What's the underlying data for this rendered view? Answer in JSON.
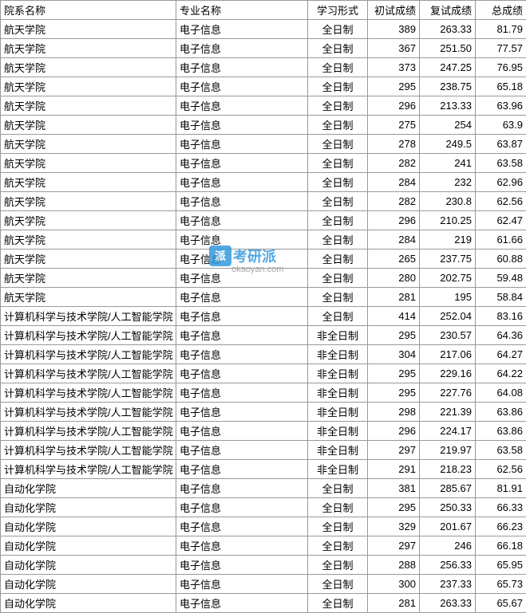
{
  "headers": {
    "dept": "院系名称",
    "major": "专业名称",
    "mode": "学习形式",
    "score1": "初试成绩",
    "score2": "复试成绩",
    "total": "总成绩"
  },
  "watermark": {
    "icon": "派",
    "text": "考研派",
    "url": "okaoyan.com"
  },
  "rows": [
    {
      "dept": "航天学院",
      "major": "电子信息",
      "mode": "全日制",
      "score1": "389",
      "score2": "263.33",
      "total": "81.79"
    },
    {
      "dept": "航天学院",
      "major": "电子信息",
      "mode": "全日制",
      "score1": "367",
      "score2": "251.50",
      "total": "77.57"
    },
    {
      "dept": "航天学院",
      "major": "电子信息",
      "mode": "全日制",
      "score1": "373",
      "score2": "247.25",
      "total": "76.95"
    },
    {
      "dept": "航天学院",
      "major": "电子信息",
      "mode": "全日制",
      "score1": "295",
      "score2": "238.75",
      "total": "65.18"
    },
    {
      "dept": "航天学院",
      "major": "电子信息",
      "mode": "全日制",
      "score1": "296",
      "score2": "213.33",
      "total": "63.96"
    },
    {
      "dept": "航天学院",
      "major": "电子信息",
      "mode": "全日制",
      "score1": "275",
      "score2": "254",
      "total": "63.9"
    },
    {
      "dept": "航天学院",
      "major": "电子信息",
      "mode": "全日制",
      "score1": "278",
      "score2": "249.5",
      "total": "63.87"
    },
    {
      "dept": "航天学院",
      "major": "电子信息",
      "mode": "全日制",
      "score1": "282",
      "score2": "241",
      "total": "63.58"
    },
    {
      "dept": "航天学院",
      "major": "电子信息",
      "mode": "全日制",
      "score1": "284",
      "score2": "232",
      "total": "62.96"
    },
    {
      "dept": "航天学院",
      "major": "电子信息",
      "mode": "全日制",
      "score1": "282",
      "score2": "230.8",
      "total": "62.56"
    },
    {
      "dept": "航天学院",
      "major": "电子信息",
      "mode": "全日制",
      "score1": "296",
      "score2": "210.25",
      "total": "62.47"
    },
    {
      "dept": "航天学院",
      "major": "电子信息",
      "mode": "全日制",
      "score1": "284",
      "score2": "219",
      "total": "61.66"
    },
    {
      "dept": "航天学院",
      "major": "电子信息",
      "mode": "全日制",
      "score1": "265",
      "score2": "237.75",
      "total": "60.88"
    },
    {
      "dept": "航天学院",
      "major": "电子信息",
      "mode": "全日制",
      "score1": "280",
      "score2": "202.75",
      "total": "59.48"
    },
    {
      "dept": "航天学院",
      "major": "电子信息",
      "mode": "全日制",
      "score1": "281",
      "score2": "195",
      "total": "58.84"
    },
    {
      "dept": "  计算机科学与技术学院/人工智能学院",
      "major": "电子信息",
      "mode": "全日制",
      "score1": "414",
      "score2": "252.04",
      "total": "83.16"
    },
    {
      "dept": "计算机科学与技术学院/人工智能学院",
      "major": "电子信息",
      "mode": "非全日制",
      "score1": "295",
      "score2": "230.57",
      "total": "64.36"
    },
    {
      "dept": "计算机科学与技术学院/人工智能学院",
      "major": "电子信息",
      "mode": "非全日制",
      "score1": "304",
      "score2": "217.06",
      "total": "64.27"
    },
    {
      "dept": "计算机科学与技术学院/人工智能学院",
      "major": "电子信息",
      "mode": "非全日制",
      "score1": "295",
      "score2": "229.16",
      "total": "64.22"
    },
    {
      "dept": "计算机科学与技术学院/人工智能学院",
      "major": "电子信息",
      "mode": "非全日制",
      "score1": "295",
      "score2": "227.76",
      "total": "64.08"
    },
    {
      "dept": "计算机科学与技术学院/人工智能学院",
      "major": "电子信息",
      "mode": "非全日制",
      "score1": "298",
      "score2": "221.39",
      "total": "63.86"
    },
    {
      "dept": "计算机科学与技术学院/人工智能学院",
      "major": "电子信息",
      "mode": "非全日制",
      "score1": "296",
      "score2": "224.17",
      "total": "63.86"
    },
    {
      "dept": "计算机科学与技术学院/人工智能学院",
      "major": "电子信息",
      "mode": "非全日制",
      "score1": "297",
      "score2": "219.97",
      "total": "63.58"
    },
    {
      "dept": "计算机科学与技术学院/人工智能学院",
      "major": "电子信息",
      "mode": "非全日制",
      "score1": "291",
      "score2": "218.23",
      "total": "62.56"
    },
    {
      "dept": "自动化学院",
      "major": "电子信息",
      "mode": "全日制",
      "score1": "381",
      "score2": "285.67",
      "total": "81.91"
    },
    {
      "dept": "自动化学院",
      "major": "电子信息",
      "mode": "全日制",
      "score1": "295",
      "score2": "250.33",
      "total": "66.33"
    },
    {
      "dept": "自动化学院",
      "major": "电子信息",
      "mode": "全日制",
      "score1": "329",
      "score2": "201.67",
      "total": "66.23"
    },
    {
      "dept": "自动化学院",
      "major": "电子信息",
      "mode": "全日制",
      "score1": "297",
      "score2": "246",
      "total": "66.18"
    },
    {
      "dept": "自动化学院",
      "major": "电子信息",
      "mode": "全日制",
      "score1": "288",
      "score2": "256.33",
      "total": "65.95"
    },
    {
      "dept": "自动化学院",
      "major": "电子信息",
      "mode": "全日制",
      "score1": "300",
      "score2": "237.33",
      "total": "65.73"
    },
    {
      "dept": "自动化学院",
      "major": "电子信息",
      "mode": "全日制",
      "score1": "281",
      "score2": "263.33",
      "total": "65.67"
    }
  ]
}
